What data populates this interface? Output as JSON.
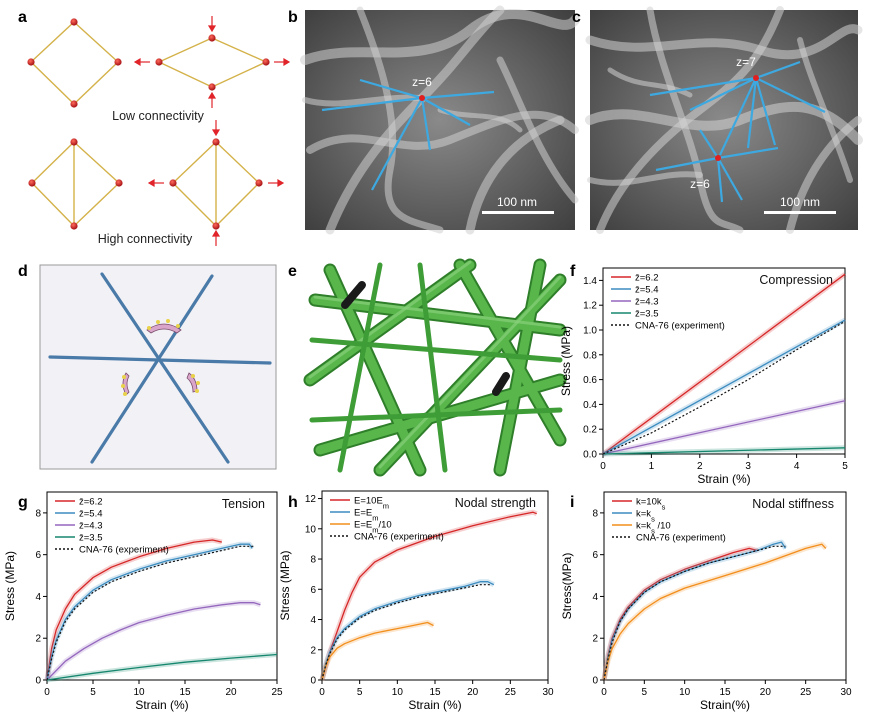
{
  "panel_labels": {
    "a": "a",
    "b": "b",
    "c": "c",
    "d": "d",
    "e": "e",
    "f": "f",
    "g": "g",
    "h": "h",
    "i": "i"
  },
  "panel_a": {
    "low_label": "Low connectivity",
    "high_label": "High connectivity"
  },
  "panel_b": {
    "z_label": "z=6",
    "scale_label": "100 nm"
  },
  "panel_c": {
    "z_label_top": "z=7",
    "z_label_bottom": "z=6",
    "scale_label": "100 nm"
  },
  "colors": {
    "red": "#d62728",
    "blue": "#3b8bbf",
    "purple": "#9467bd",
    "teal": "#16876e",
    "orange": "#f28e1c",
    "beam": "#4a7aa8",
    "tube": "#3f9e3a",
    "node": "#c0131b",
    "bond": "#d4b24a"
  },
  "chart_data": [
    {
      "id": "f",
      "type": "line",
      "title": "Compression",
      "xlabel": "Strain (%)",
      "ylabel": "Stress (MPa)",
      "xlim": [
        0,
        5
      ],
      "ylim": [
        0,
        1.5
      ],
      "xticks": [
        "0",
        "1",
        "2",
        "3",
        "4",
        "5"
      ],
      "yticks": [
        "0.0",
        "0.2",
        "0.4",
        "0.6",
        "0.8",
        "1.0",
        "1.2",
        "1.4"
      ],
      "legend_position": "top-left",
      "series": [
        {
          "name": "z̄=6.2",
          "color": "#d62728",
          "dashed": false,
          "x": [
            0,
            5
          ],
          "y": [
            0,
            1.45
          ]
        },
        {
          "name": "z̄=5.4",
          "color": "#3b8bbf",
          "dashed": false,
          "x": [
            0,
            5
          ],
          "y": [
            0,
            1.08
          ]
        },
        {
          "name": "z̄=4.3",
          "color": "#9467bd",
          "dashed": false,
          "x": [
            0,
            5
          ],
          "y": [
            0,
            0.43
          ]
        },
        {
          "name": "z̄=3.5",
          "color": "#16876e",
          "dashed": false,
          "x": [
            0,
            5
          ],
          "y": [
            0,
            0.05
          ]
        },
        {
          "name": "CNA-76 (experiment)",
          "color": "#111111",
          "dashed": true,
          "x": [
            0,
            1,
            2,
            3,
            4,
            5
          ],
          "y": [
            0,
            0.17,
            0.38,
            0.6,
            0.84,
            1.07
          ]
        }
      ]
    },
    {
      "id": "g",
      "type": "line",
      "title": "Tension",
      "xlabel": "Strain (%)",
      "ylabel": "Stress (MPa)",
      "xlim": [
        0,
        25
      ],
      "ylim": [
        0,
        9
      ],
      "xticks": [
        "0",
        "5",
        "10",
        "15",
        "20",
        "25"
      ],
      "yticks": [
        "0",
        "2",
        "4",
        "6",
        "8"
      ],
      "legend_position": "top-left",
      "series": [
        {
          "name": "z̄=6.2",
          "color": "#d62728",
          "dashed": false,
          "x": [
            0,
            0.5,
            1,
            2,
            3,
            5,
            7,
            10,
            13,
            16,
            18,
            19
          ],
          "y": [
            0,
            1.5,
            2.4,
            3.4,
            4.1,
            4.9,
            5.4,
            5.9,
            6.3,
            6.6,
            6.7,
            6.6
          ]
        },
        {
          "name": "z̄=5.4",
          "color": "#3b8bbf",
          "dashed": false,
          "x": [
            0,
            0.5,
            1,
            2,
            3,
            5,
            7,
            10,
            13,
            16,
            19,
            21,
            22,
            22.3
          ],
          "y": [
            0,
            1.1,
            1.9,
            2.9,
            3.5,
            4.3,
            4.8,
            5.3,
            5.7,
            6.0,
            6.3,
            6.5,
            6.5,
            6.3
          ]
        },
        {
          "name": "z̄=4.3",
          "color": "#9467bd",
          "dashed": false,
          "x": [
            0,
            2,
            4,
            6,
            8,
            10,
            13,
            16,
            19,
            21,
            22.5,
            23.2
          ],
          "y": [
            0,
            0.9,
            1.5,
            2.0,
            2.4,
            2.75,
            3.1,
            3.4,
            3.6,
            3.7,
            3.7,
            3.6
          ]
        },
        {
          "name": "z̄=3.5",
          "color": "#16876e",
          "dashed": false,
          "x": [
            0,
            5,
            10,
            15,
            20,
            25
          ],
          "y": [
            0,
            0.32,
            0.6,
            0.85,
            1.05,
            1.22
          ]
        },
        {
          "name": "CNA-76 (experiment)",
          "color": "#111111",
          "dashed": true,
          "x": [
            0,
            0.5,
            1,
            2,
            3,
            5,
            7,
            10,
            13,
            16,
            19,
            21,
            22.5
          ],
          "y": [
            0,
            1.0,
            1.8,
            2.8,
            3.4,
            4.2,
            4.7,
            5.2,
            5.6,
            5.9,
            6.2,
            6.4,
            6.4
          ]
        }
      ]
    },
    {
      "id": "h",
      "type": "line",
      "title": "Nodal strength",
      "xlabel": "Strain (%)",
      "ylabel": "Stress (MPa)",
      "xlim": [
        0,
        30
      ],
      "ylim": [
        0,
        12.5
      ],
      "xticks": [
        "0",
        "5",
        "10",
        "15",
        "20",
        "25",
        "30"
      ],
      "yticks": [
        "0",
        "2",
        "4",
        "6",
        "8",
        "10",
        "12"
      ],
      "legend_position": "top-left",
      "series": [
        {
          "name": "E=10E_m",
          "color": "#d62728",
          "dashed": false,
          "x": [
            0,
            1,
            2,
            3,
            4,
            5,
            7,
            10,
            15,
            20,
            25,
            28,
            28.5
          ],
          "y": [
            0,
            1.8,
            3.2,
            4.6,
            5.8,
            6.8,
            7.8,
            8.6,
            9.5,
            10.2,
            10.8,
            11.1,
            11.0
          ]
        },
        {
          "name": "E=E_m",
          "color": "#3b8bbf",
          "dashed": false,
          "x": [
            0,
            0.5,
            1,
            2,
            3,
            5,
            7,
            10,
            13,
            16,
            19,
            21,
            22,
            22.8
          ],
          "y": [
            0,
            1.1,
            1.8,
            2.8,
            3.4,
            4.2,
            4.7,
            5.2,
            5.6,
            5.9,
            6.2,
            6.5,
            6.5,
            6.3
          ]
        },
        {
          "name": "E=E_m/10",
          "color": "#f28e1c",
          "dashed": false,
          "x": [
            0,
            0.5,
            1,
            2,
            3,
            5,
            7,
            10,
            12,
            14,
            14.8
          ],
          "y": [
            0,
            0.9,
            1.5,
            2.1,
            2.4,
            2.8,
            3.1,
            3.4,
            3.6,
            3.8,
            3.6
          ]
        },
        {
          "name": "CNA-76 (experiment)",
          "color": "#111111",
          "dashed": true,
          "x": [
            0,
            0.5,
            1,
            2,
            3,
            5,
            7,
            10,
            13,
            16,
            19,
            21,
            22.5
          ],
          "y": [
            0,
            1.0,
            1.7,
            2.7,
            3.3,
            4.1,
            4.6,
            5.1,
            5.5,
            5.8,
            6.1,
            6.3,
            6.3
          ]
        }
      ]
    },
    {
      "id": "i",
      "type": "line",
      "title": "Nodal stiffness",
      "xlabel": "Strain(%)",
      "ylabel": "Stress(MPa)",
      "xlim": [
        0,
        30
      ],
      "ylim": [
        0,
        9
      ],
      "xticks": [
        "0",
        "5",
        "10",
        "15",
        "20",
        "25",
        "30"
      ],
      "yticks": [
        "0",
        "2",
        "4",
        "6",
        "8"
      ],
      "legend_position": "top-left",
      "series": [
        {
          "name": "k=10k_s",
          "color": "#d62728",
          "dashed": false,
          "x": [
            0,
            0.5,
            1,
            2,
            3,
            5,
            7,
            10,
            13,
            16,
            18,
            19
          ],
          "y": [
            0,
            1.2,
            2.0,
            2.9,
            3.5,
            4.3,
            4.8,
            5.3,
            5.7,
            6.1,
            6.3,
            6.2
          ]
        },
        {
          "name": "k=k_s",
          "color": "#3b8bbf",
          "dashed": false,
          "x": [
            0,
            0.5,
            1,
            2,
            3,
            5,
            7,
            10,
            13,
            16,
            19,
            21,
            22,
            22.5
          ],
          "y": [
            0,
            1.1,
            1.9,
            2.8,
            3.4,
            4.2,
            4.7,
            5.2,
            5.6,
            5.9,
            6.2,
            6.5,
            6.6,
            6.3
          ]
        },
        {
          "name": "k=k_s /10",
          "color": "#f28e1c",
          "dashed": false,
          "x": [
            0,
            0.5,
            1,
            2,
            3,
            5,
            7,
            10,
            15,
            20,
            25,
            27,
            27.5
          ],
          "y": [
            0,
            0.9,
            1.5,
            2.2,
            2.7,
            3.4,
            3.9,
            4.4,
            5.0,
            5.6,
            6.3,
            6.5,
            6.3
          ]
        },
        {
          "name": "CNA-76 (experiment)",
          "color": "#111111",
          "dashed": true,
          "x": [
            0,
            0.5,
            1,
            2,
            3,
            5,
            7,
            10,
            13,
            16,
            19,
            21,
            22.5
          ],
          "y": [
            0,
            1.0,
            1.8,
            2.8,
            3.4,
            4.2,
            4.7,
            5.2,
            5.6,
            5.9,
            6.2,
            6.4,
            6.4
          ]
        }
      ]
    }
  ]
}
